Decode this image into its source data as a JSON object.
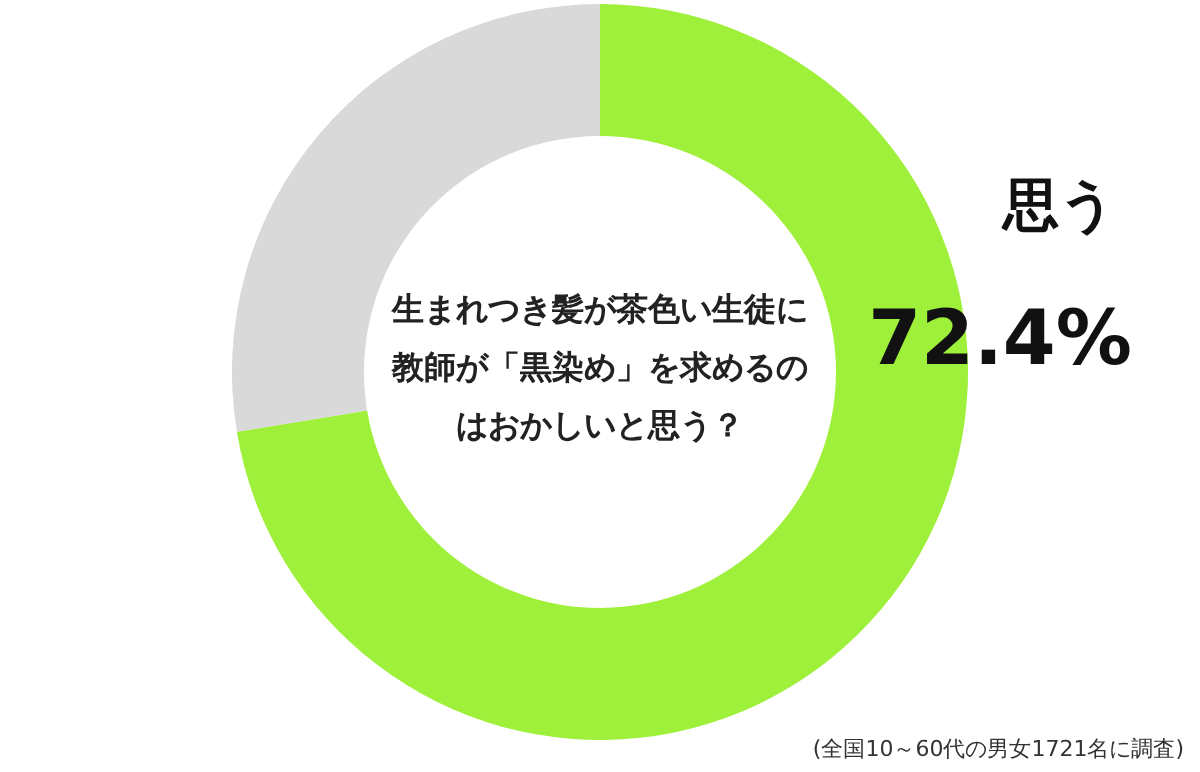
{
  "chart_data": {
    "type": "donut",
    "title": "生まれつき髪が茶色い生徒に教師が「黒染め」を求めるのはおかしいと思う？",
    "categories": [
      "思う",
      null
    ],
    "values": [
      72.4,
      27.6
    ],
    "value_labels": [
      "72.4%",
      null
    ],
    "colors": [
      "#9ef03a",
      "#d9d9d9"
    ],
    "annotations": [
      "(全国10～60代の男女1721名に調査)"
    ]
  }
}
